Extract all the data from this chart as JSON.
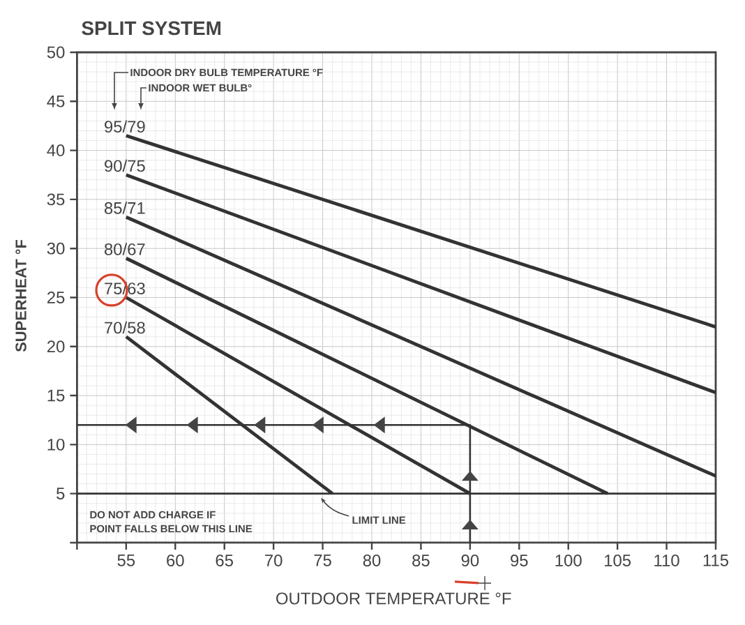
{
  "chart_data": {
    "type": "line",
    "title": "SPLIT SYSTEM",
    "xlabel": "OUTDOOR TEMPERATURE °F",
    "ylabel": "SUPERHEAT °F",
    "xlim": [
      50,
      115
    ],
    "ylim": [
      0,
      50
    ],
    "xticks": [
      {
        "value": 50,
        "label": null
      },
      55,
      60,
      65,
      70,
      75,
      80,
      85,
      90,
      95,
      100,
      105,
      110,
      115
    ],
    "yticks": [
      {
        "value": 0,
        "label": null
      },
      5,
      10,
      15,
      20,
      25,
      30,
      35,
      40,
      45,
      50
    ],
    "grid": true,
    "series": [
      {
        "name": "95/79",
        "color": "#333333",
        "x": [
          55,
          115
        ],
        "values": [
          41.5,
          22
        ]
      },
      {
        "name": "90/75",
        "color": "#333333",
        "x": [
          55,
          115
        ],
        "values": [
          37.5,
          15.3
        ]
      },
      {
        "name": "85/71",
        "color": "#333333",
        "x": [
          55,
          115
        ],
        "values": [
          33.2,
          6.8
        ]
      },
      {
        "name": "80/67",
        "color": "#333333",
        "x": [
          55,
          104
        ],
        "values": [
          29,
          5
        ]
      },
      {
        "name": "75/63",
        "color": "#333333",
        "x": [
          55,
          90
        ],
        "values": [
          25,
          5
        ]
      },
      {
        "name": "70/58",
        "color": "#333333",
        "x": [
          55,
          76
        ],
        "values": [
          21,
          5
        ]
      },
      {
        "color": "#333333",
        "x": [
          90,
          90,
          50
        ],
        "values": [
          0,
          12,
          12
        ]
      }
    ],
    "ref_lines": [
      {
        "axis": "y",
        "value": 5,
        "label": "LIMIT LINE",
        "color": "#333333"
      }
    ],
    "annotations": [
      "INDOOR DRY BULB TEMPERATURE °F",
      "INDOOR WET BULB°",
      "DO NOT ADD CHARGE IF",
      "POINT FALLS BELOW THIS LINE"
    ]
  }
}
